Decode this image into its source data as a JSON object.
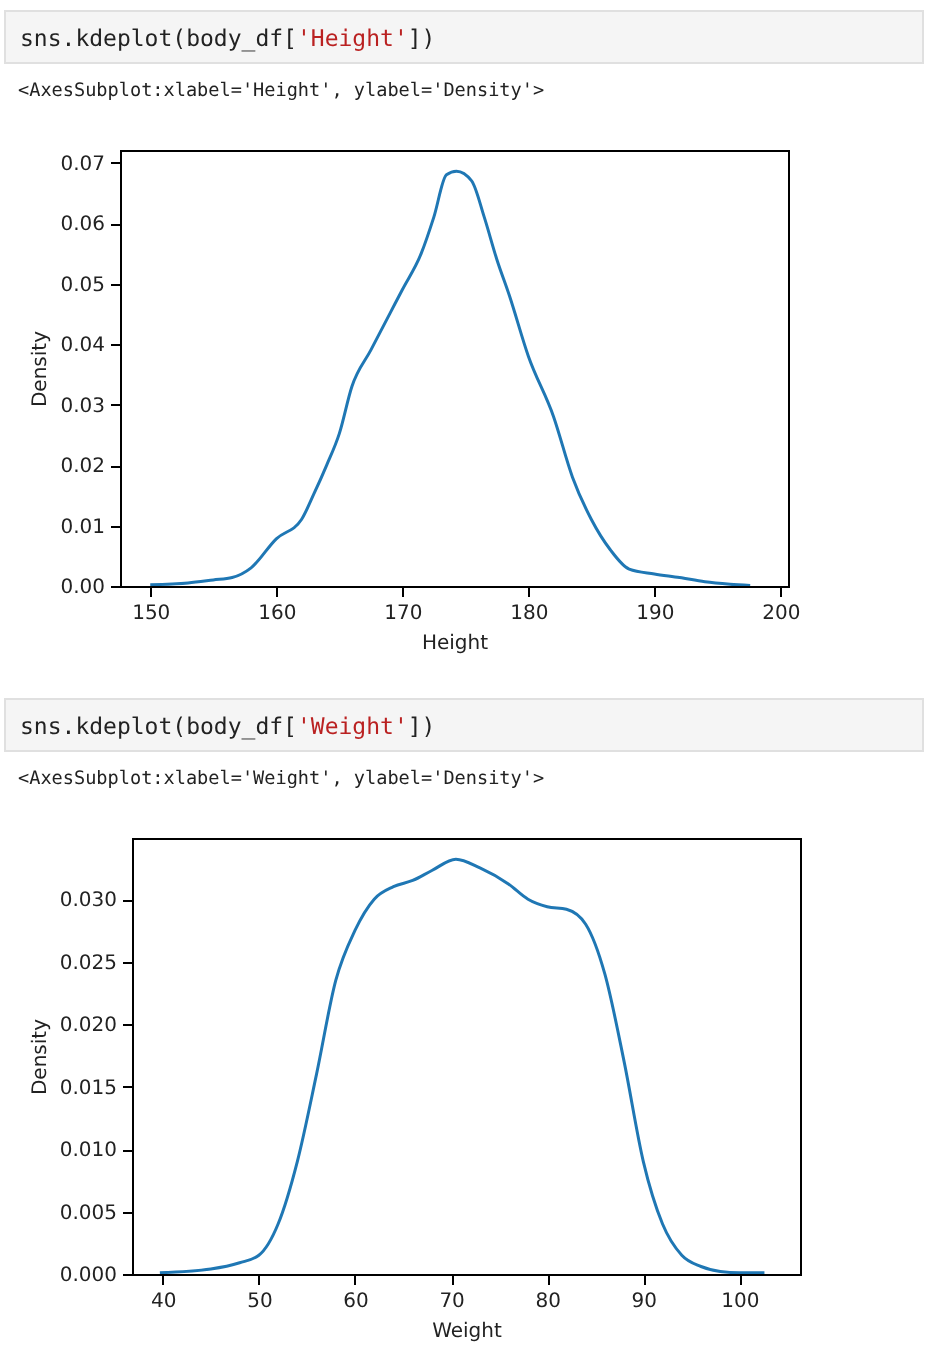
{
  "chart_data": [
    {
      "type": "line",
      "title": "sns.kdeplot(body_df['Height'])",
      "subtitle": "<AxesSubplot:xlabel='Height', ylabel='Density'>",
      "xlabel": "Height",
      "ylabel": "Density",
      "xlim": [
        147.6,
        200.6
      ],
      "ylim": [
        0,
        0.0721
      ],
      "xticks": [
        150,
        160,
        170,
        180,
        190,
        200
      ],
      "yticks": [
        {
          "value": 0,
          "label": "0.00"
        },
        {
          "value": 0.01,
          "label": "0.01"
        },
        {
          "value": 0.02,
          "label": "0.02"
        },
        {
          "value": 0.03,
          "label": "0.03"
        },
        {
          "value": 0.04,
          "label": "0.04"
        },
        {
          "value": 0.05,
          "label": "0.05"
        },
        {
          "value": 0.06,
          "label": "0.06"
        },
        {
          "value": 0.07,
          "label": "0.07"
        }
      ],
      "grid": false,
      "x": [
        150,
        153,
        155,
        156.5,
        158,
        160,
        162,
        163,
        164,
        165,
        166,
        167.5,
        169,
        170,
        171.5,
        172.5,
        173.5,
        174.3,
        175.5,
        176.5,
        177.5,
        178.5,
        180,
        182,
        183.5,
        185,
        186.5,
        188,
        190,
        192,
        194,
        196,
        197.6
      ],
      "series": [
        {
          "color": "#1f77b4",
          "values": [
            0.0002,
            0.0005,
            0.001,
            0.0014,
            0.003,
            0.0078,
            0.011,
            0.0153,
            0.02,
            0.0252,
            0.033,
            0.039,
            0.045,
            0.049,
            0.055,
            0.061,
            0.068,
            0.0686,
            0.067,
            0.061,
            0.054,
            0.048,
            0.038,
            0.028,
            0.018,
            0.011,
            0.006,
            0.0028,
            0.002,
            0.0014,
            0.0007,
            0.0003,
            0.0001
          ]
        }
      ]
    },
    {
      "type": "line",
      "title": "sns.kdeplot(body_df['Weight'])",
      "subtitle": "<AxesSubplot:xlabel='Weight', ylabel='Density'>",
      "xlabel": "Weight",
      "ylabel": "Density",
      "xlim": [
        36.8,
        106.3
      ],
      "ylim": [
        0,
        0.0349
      ],
      "xticks": [
        40,
        50,
        60,
        70,
        80,
        90,
        100
      ],
      "yticks": [
        {
          "value": 0,
          "label": "0.000"
        },
        {
          "value": 0.005,
          "label": "0.005"
        },
        {
          "value": 0.01,
          "label": "0.010"
        },
        {
          "value": 0.015,
          "label": "0.015"
        },
        {
          "value": 0.02,
          "label": "0.020"
        },
        {
          "value": 0.025,
          "label": "0.025"
        },
        {
          "value": 0.03,
          "label": "0.030"
        }
      ],
      "grid": false,
      "x": [
        39.7,
        45,
        48,
        50,
        52,
        54,
        56,
        58,
        60,
        62,
        64,
        66,
        68,
        70.5,
        73,
        76,
        78,
        80,
        82,
        84,
        86,
        88,
        90,
        92,
        94,
        96,
        98,
        100,
        102.6
      ],
      "series": [
        {
          "color": "#1f77b4",
          "values": [
            0.0001,
            0.0004,
            0.0009,
            0.0015,
            0.004,
            0.009,
            0.016,
            0.0235,
            0.0275,
            0.03,
            0.031,
            0.0315,
            0.0323,
            0.0332,
            0.0325,
            0.0312,
            0.03,
            0.0294,
            0.0292,
            0.028,
            0.024,
            0.017,
            0.009,
            0.004,
            0.0015,
            0.0006,
            0.0002,
            0.0001,
            0.0001
          ]
        }
      ]
    }
  ]
}
